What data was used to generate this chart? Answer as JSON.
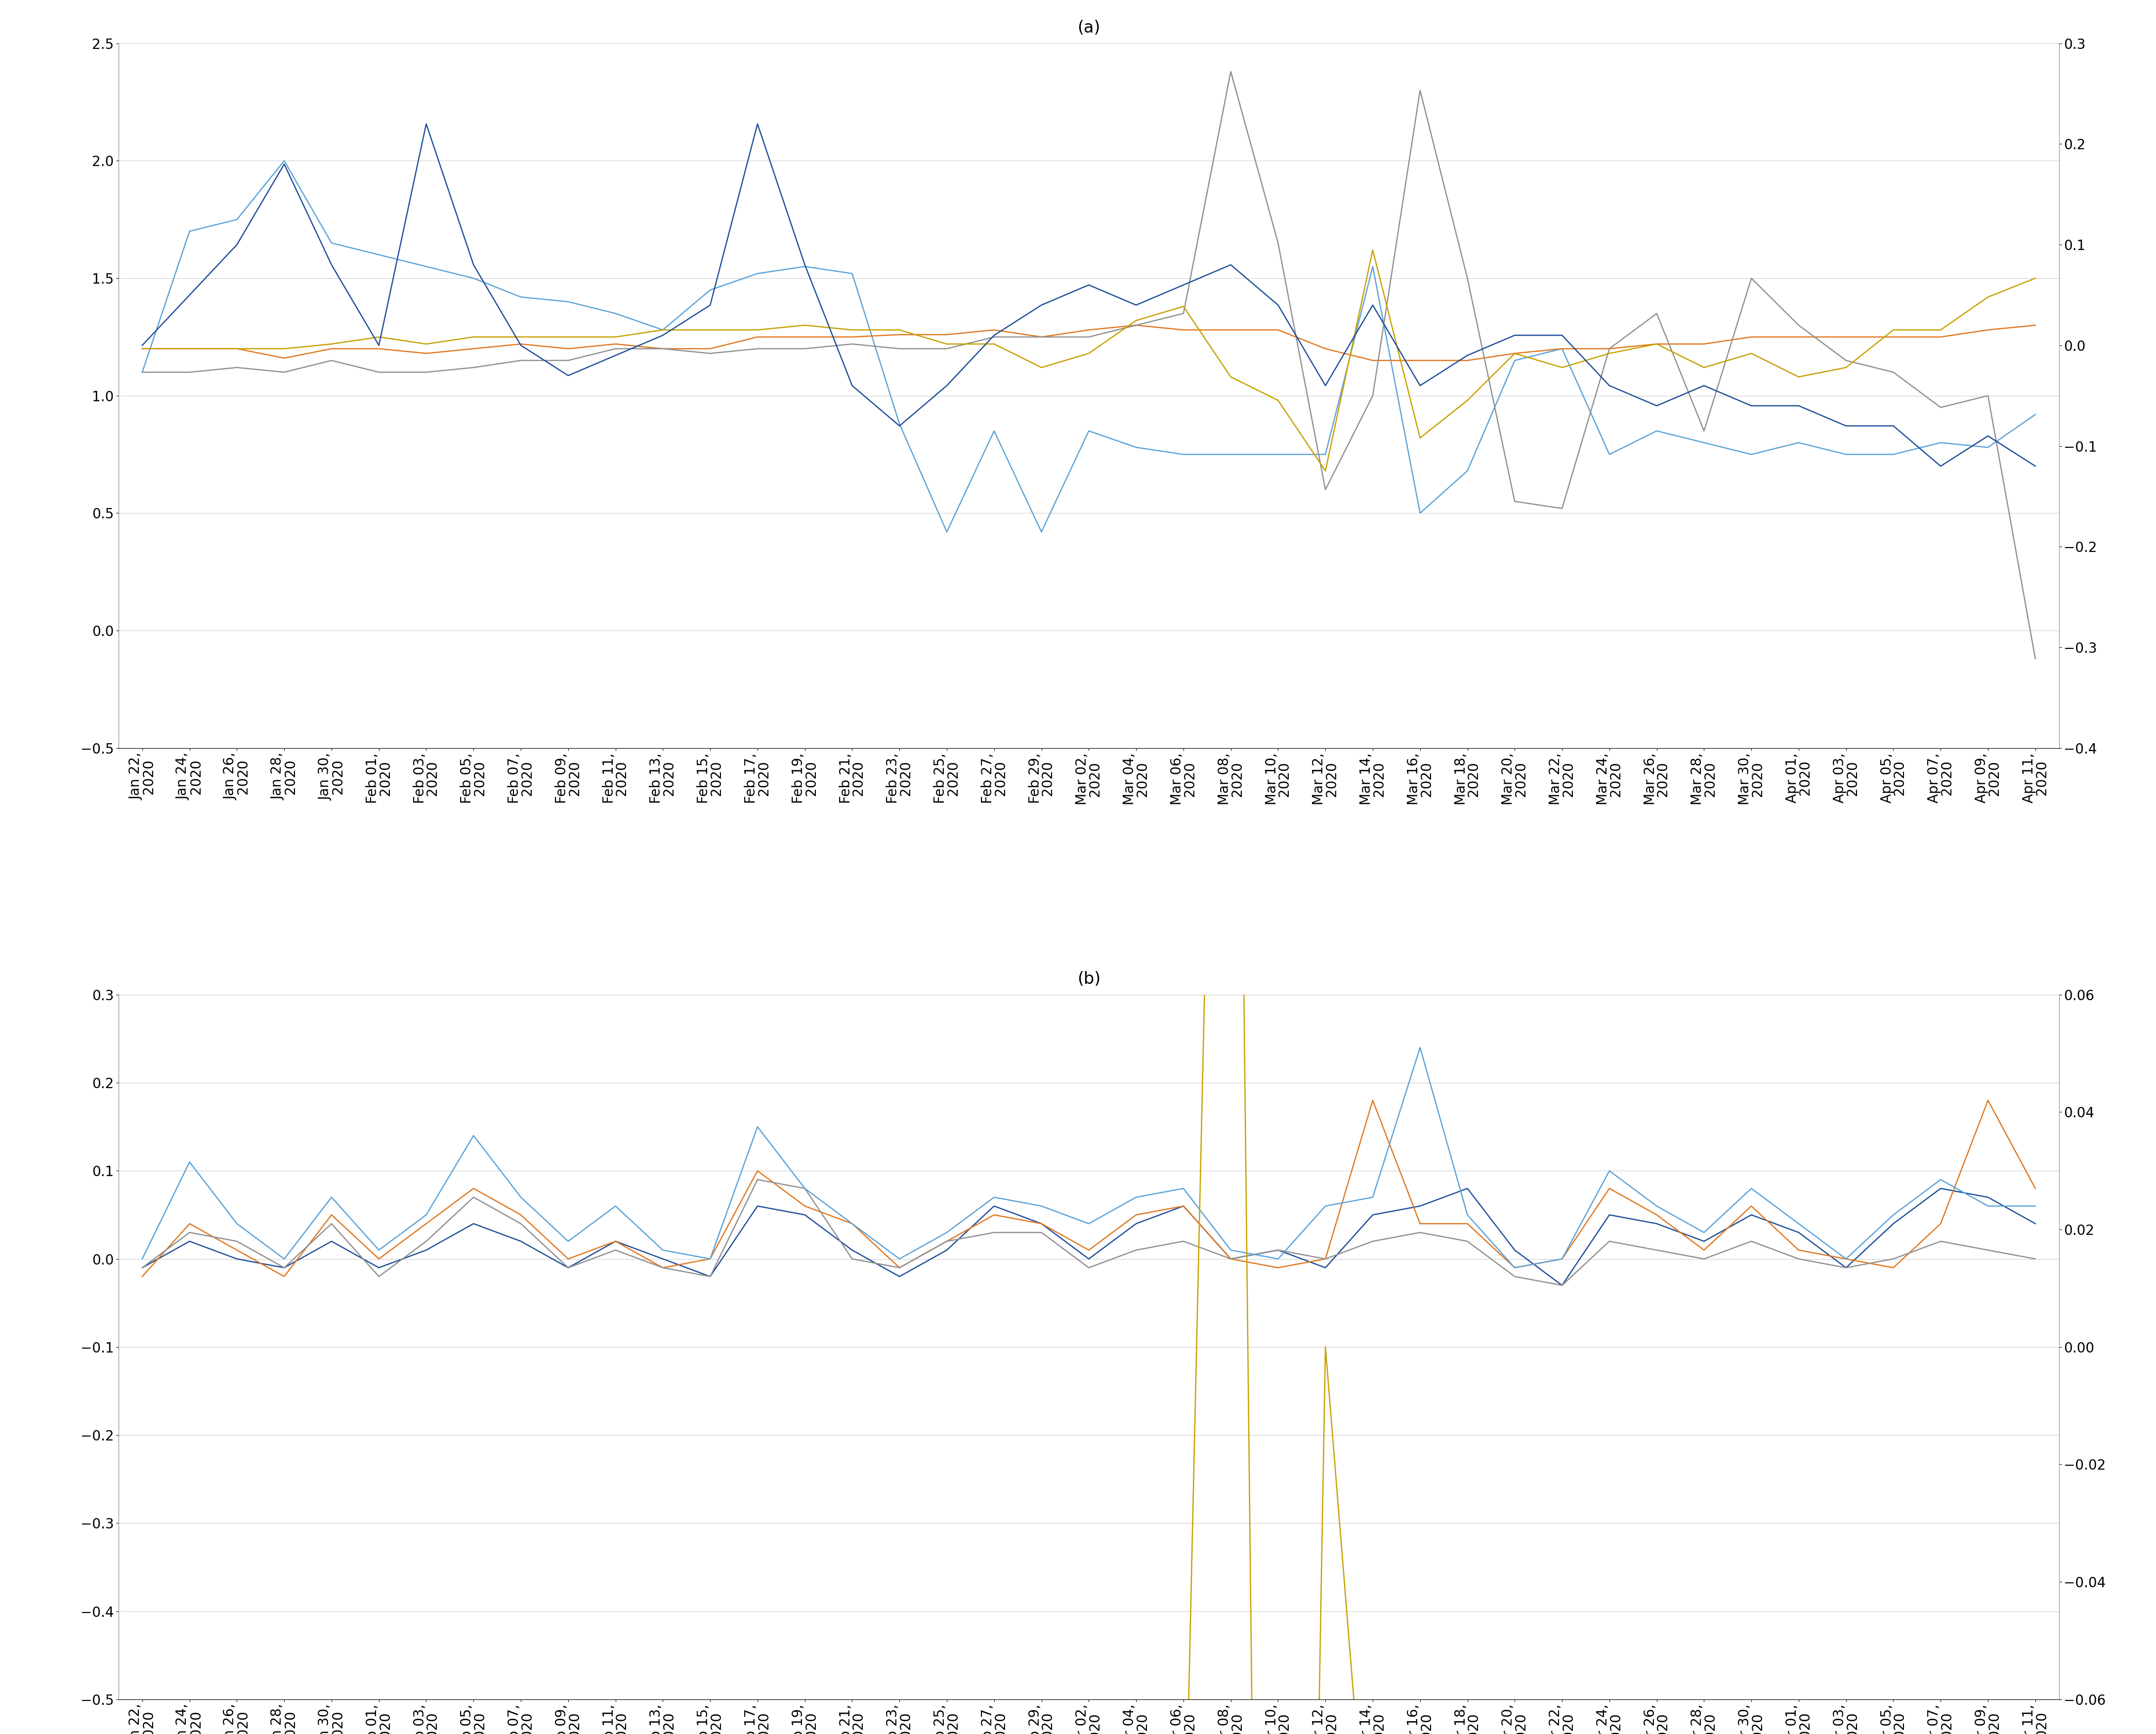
{
  "title_a": "(a)",
  "title_b": "(b)",
  "dates": [
    "Jan 22,\n2020",
    "Jan 24,\n2020",
    "Jan 26,\n2020",
    "Jan 28,\n2020",
    "Jan 30,\n2020",
    "Feb 01,\n2020",
    "Feb 03,\n2020",
    "Feb 05,\n2020",
    "Feb 07,\n2020",
    "Feb 09,\n2020",
    "Feb 11,\n2020",
    "Feb 13,\n2020",
    "Feb 15,\n2020",
    "Feb 17,\n2020",
    "Feb 19,\n2020",
    "Feb 21,\n2020",
    "Feb 23,\n2020",
    "Feb 25,\n2020",
    "Feb 27,\n2020",
    "Feb 29,\n2020",
    "Mar 02,\n2020",
    "Mar 04,\n2020",
    "Mar 06,\n2020",
    "Mar 08,\n2020",
    "Mar 10,\n2020",
    "Mar 12,\n2020",
    "Mar 14,\n2020",
    "Mar 16,\n2020",
    "Mar 18,\n2020",
    "Mar 20,\n2020",
    "Mar 22,\n2020",
    "Mar 24,\n2020",
    "Mar 26,\n2020",
    "Mar 28,\n2020",
    "Mar 30,\n2020",
    "Apr 01,\n2020",
    "Apr 03,\n2020",
    "Apr 05,\n2020",
    "Apr 07,\n2020",
    "Apr 09,\n2020",
    "Apr 11,\n2020"
  ],
  "panel_a": {
    "COVID": [
      0.0,
      0.05,
      0.1,
      0.18,
      0.08,
      0.0,
      0.22,
      0.08,
      0.0,
      -0.03,
      -0.01,
      0.01,
      0.04,
      0.22,
      0.08,
      -0.04,
      -0.08,
      -0.04,
      0.01,
      0.04,
      0.06,
      0.04,
      0.06,
      0.08,
      0.04,
      -0.04,
      0.04,
      -0.04,
      -0.01,
      0.01,
      0.01,
      -0.04,
      -0.06,
      -0.04,
      -0.06,
      -0.06,
      -0.08,
      -0.08,
      -0.12,
      -0.09,
      -0.12
    ],
    "VIX": [
      1.1,
      1.7,
      1.75,
      2.0,
      1.65,
      1.6,
      1.55,
      1.5,
      1.42,
      1.4,
      1.35,
      1.28,
      1.45,
      1.52,
      1.55,
      1.52,
      0.88,
      0.42,
      0.85,
      0.42,
      0.85,
      0.78,
      0.75,
      0.75,
      0.75,
      0.75,
      1.55,
      0.5,
      0.68,
      1.15,
      1.2,
      0.75,
      0.85,
      0.8,
      0.75,
      0.8,
      0.75,
      0.75,
      0.8,
      0.78,
      0.92
    ],
    "GOLD": [
      1.2,
      1.2,
      1.2,
      1.16,
      1.2,
      1.2,
      1.18,
      1.2,
      1.22,
      1.2,
      1.22,
      1.2,
      1.2,
      1.25,
      1.25,
      1.25,
      1.26,
      1.26,
      1.28,
      1.25,
      1.28,
      1.3,
      1.28,
      1.28,
      1.28,
      1.2,
      1.15,
      1.15,
      1.15,
      1.18,
      1.2,
      1.2,
      1.22,
      1.22,
      1.25,
      1.25,
      1.25,
      1.25,
      1.25,
      1.28,
      1.3
    ],
    "OIL": [
      1.1,
      1.1,
      1.12,
      1.1,
      1.15,
      1.1,
      1.1,
      1.12,
      1.15,
      1.15,
      1.2,
      1.2,
      1.18,
      1.2,
      1.2,
      1.22,
      1.2,
      1.2,
      1.25,
      1.25,
      1.25,
      1.3,
      1.35,
      2.38,
      1.65,
      0.6,
      1.0,
      2.3,
      1.5,
      0.55,
      0.52,
      1.2,
      1.35,
      0.85,
      1.5,
      1.3,
      1.15,
      1.1,
      0.95,
      1.0,
      -0.12
    ],
    "SP500": [
      1.2,
      1.2,
      1.2,
      1.2,
      1.22,
      1.25,
      1.22,
      1.25,
      1.25,
      1.25,
      1.25,
      1.28,
      1.28,
      1.28,
      1.3,
      1.28,
      1.28,
      1.22,
      1.22,
      1.12,
      1.18,
      1.32,
      1.38,
      1.08,
      0.98,
      0.68,
      1.62,
      0.82,
      0.98,
      1.18,
      1.12,
      1.18,
      1.22,
      1.12,
      1.18,
      1.08,
      1.12,
      1.28,
      1.28,
      1.42,
      1.5
    ]
  },
  "panel_b": {
    "Bitcoin": [
      -0.01,
      0.02,
      0.0,
      -0.01,
      0.02,
      -0.01,
      0.01,
      0.04,
      0.02,
      -0.01,
      0.02,
      0.0,
      -0.02,
      0.06,
      0.05,
      0.01,
      -0.02,
      0.01,
      0.06,
      0.04,
      0.0,
      0.04,
      0.06,
      0.0,
      0.01,
      -0.01,
      0.05,
      0.06,
      0.08,
      0.01,
      -0.03,
      0.05,
      0.04,
      0.02,
      0.05,
      0.03,
      -0.01,
      0.04,
      0.08,
      0.07,
      0.04
    ],
    "Etherum": [
      -0.02,
      0.04,
      0.01,
      -0.02,
      0.05,
      0.0,
      0.04,
      0.08,
      0.05,
      0.0,
      0.02,
      -0.01,
      0.0,
      0.1,
      0.06,
      0.04,
      -0.01,
      0.02,
      0.05,
      0.04,
      0.01,
      0.05,
      0.06,
      0.0,
      -0.01,
      0.0,
      0.18,
      0.04,
      0.04,
      -0.01,
      0.0,
      0.08,
      0.05,
      0.01,
      0.06,
      0.01,
      0.0,
      -0.01,
      0.04,
      0.18,
      0.08
    ],
    "XRP": [
      -0.01,
      0.03,
      0.02,
      -0.01,
      0.04,
      -0.02,
      0.02,
      0.07,
      0.04,
      -0.01,
      0.01,
      -0.01,
      -0.02,
      0.09,
      0.08,
      0.0,
      -0.01,
      0.02,
      0.03,
      0.03,
      -0.01,
      0.01,
      0.02,
      0.0,
      0.01,
      0.0,
      0.02,
      0.03,
      0.02,
      -0.02,
      -0.03,
      0.02,
      0.01,
      0.0,
      0.02,
      0.0,
      -0.01,
      0.0,
      0.02,
      0.01,
      0.0
    ],
    "BitcoinCash": [
      0.0,
      0.11,
      0.04,
      0.0,
      0.07,
      0.01,
      0.05,
      0.14,
      0.07,
      0.02,
      0.06,
      0.01,
      0.0,
      0.15,
      0.08,
      0.04,
      0.0,
      0.03,
      0.07,
      0.06,
      0.04,
      0.07,
      0.08,
      0.01,
      0.0,
      0.06,
      0.07,
      0.24,
      0.05,
      -0.01,
      0.0,
      0.1,
      0.06,
      0.03,
      0.08,
      0.04,
      0.0,
      0.05,
      0.09,
      0.06,
      0.06
    ],
    "Tether": [
      -0.1,
      -0.1,
      -0.1,
      -0.1,
      -0.1,
      -0.1,
      -0.1,
      -0.1,
      -0.1,
      -0.1,
      -0.1,
      -0.1,
      -0.1,
      -0.1,
      -0.1,
      -0.1,
      -0.1,
      -0.1,
      -0.1,
      -0.1,
      -0.1,
      -0.1,
      -0.1,
      0.26,
      -0.46,
      0.0,
      -0.1,
      -0.1,
      -0.1,
      -0.1,
      -0.1,
      -0.1,
      -0.1,
      -0.1,
      -0.1,
      -0.1,
      -0.1,
      -0.1,
      -0.1,
      -0.1,
      -0.1
    ]
  },
  "colors": {
    "COVID": "#1f4e99",
    "VIX": "#5ba3d9",
    "GOLD": "#e07820",
    "OIL": "#909090",
    "SP500": "#c8a000",
    "Bitcoin": "#1f4e99",
    "Etherum": "#e07820",
    "XRP": "#909090",
    "BitcoinCash": "#5ba3d9",
    "Tether": "#c8a000"
  },
  "panel_a_ylim": [
    -0.5,
    2.5
  ],
  "panel_a_ylim_r": [
    -0.4,
    0.3
  ],
  "panel_b_ylim": [
    -0.5,
    0.3
  ],
  "panel_b_ylim_r": [
    -0.06,
    0.06
  ],
  "lw": 1.8,
  "tick_fontsize": 20,
  "title_fontsize": 24,
  "legend_fontsize": 20
}
